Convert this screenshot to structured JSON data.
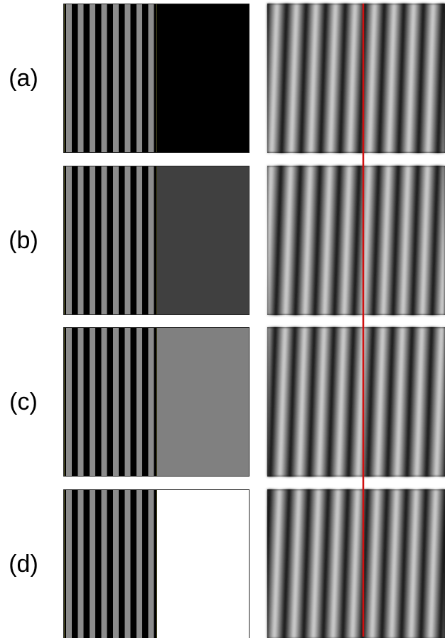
{
  "panels": [
    {
      "label": "(a)",
      "fill": "#000000"
    },
    {
      "label": "(b)",
      "fill": "#404040"
    },
    {
      "label": "(c)",
      "fill": "#808080"
    },
    {
      "label": "(d)",
      "fill": "#ffffff"
    }
  ]
}
